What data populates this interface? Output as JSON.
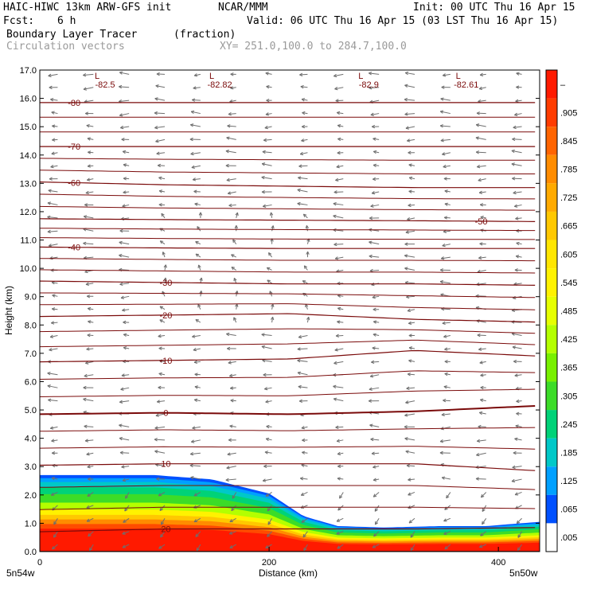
{
  "header": {
    "model": "HAIC-HIWC 13km ARW-GFS init",
    "org": "NCAR/MMM",
    "init": "Init: 00 UTC Thu 16 Apr 15",
    "fcst_label": "Fcst:",
    "fcst_value": "6 h",
    "valid": "Valid: 06 UTC Thu 16 Apr 15 (03 LST Thu 16 Apr 15)",
    "field": "Boundary Layer Tracer",
    "units": "(fraction)",
    "vectors": "Circulation vectors",
    "xy": "XY= 251.0,100.0 to 284.7,100.0"
  },
  "colorbar": {
    "labels": [
      "–",
      ".905",
      ".845",
      ".785",
      ".725",
      ".665",
      ".605",
      ".545",
      ".485",
      ".425",
      ".365",
      ".305",
      ".245",
      ".185",
      ".125",
      ".065",
      ".005"
    ],
    "colors": [
      "#ff1a00",
      "#ff3c00",
      "#ff6400",
      "#ff8c00",
      "#ffaa00",
      "#ffc800",
      "#ffe600",
      "#fff200",
      "#e6ff00",
      "#b4ff00",
      "#78f000",
      "#3cdc28",
      "#00d278",
      "#00c8c8",
      "#00a0ff",
      "#0050ff",
      "#ffffff"
    ]
  },
  "chart_data": {
    "type": "heatmap",
    "title": "Boundary Layer Tracer",
    "xlabel": "Distance (km)",
    "ylabel": "Height (km)",
    "xlim": [
      0,
      436
    ],
    "ylim": [
      0,
      17
    ],
    "x_ticks": [
      0,
      200,
      400
    ],
    "y_ticks": [
      "0.0",
      "1.0",
      "2.0",
      "3.0",
      "4.0",
      "5.0",
      "6.0",
      "7.0",
      "8.0",
      "9.0",
      "10.0",
      "11.0",
      "12.0",
      "13.0",
      "14.0",
      "15.0",
      "16.0",
      "17.0"
    ],
    "x_endpoints": {
      "left": "5n54w",
      "right": "5n50w"
    },
    "tracer_top_km": {
      "x": [
        0,
        100,
        150,
        200,
        230,
        260,
        300,
        350,
        390,
        420,
        436
      ],
      "y": [
        2.7,
        2.7,
        2.55,
        2.05,
        1.25,
        0.9,
        0.85,
        0.9,
        0.9,
        1.0,
        1.05
      ]
    },
    "temperature_contours": [
      {
        "label": "-80",
        "y": [
          15.85,
          15.85,
          15.85,
          15.85,
          15.85
        ]
      },
      {
        "label": "-70",
        "y": [
          14.3,
          14.3,
          14.3,
          14.3,
          14.3
        ]
      },
      {
        "label": "-60",
        "y": [
          13.05,
          12.95,
          12.9,
          12.85,
          12.85
        ]
      },
      {
        "label": "-50",
        "y": [
          11.75,
          11.72,
          11.7,
          11.68,
          11.65
        ]
      },
      {
        "label": "-40",
        "y": [
          10.75,
          10.72,
          10.7,
          10.7,
          10.7
        ]
      },
      {
        "label": "-30",
        "y": [
          9.55,
          9.5,
          9.45,
          9.45,
          9.4
        ]
      },
      {
        "label": "-20",
        "y": [
          8.3,
          8.35,
          8.4,
          8.2,
          8.1
        ]
      },
      {
        "label": "-10",
        "y": [
          6.7,
          6.75,
          6.8,
          7.1,
          6.9
        ]
      },
      {
        "label": "0",
        "y": [
          4.85,
          4.9,
          4.85,
          4.95,
          5.15
        ]
      },
      {
        "label": "10",
        "y": [
          3.05,
          3.1,
          3.1,
          3.1,
          2.85
        ]
      },
      {
        "label": "20",
        "y": [
          0.7,
          0.8,
          0.8,
          0.8,
          0.85
        ]
      }
    ],
    "contour_label_positions_x": {
      "-80": 30,
      "-70": 30,
      "-60": 30,
      "-50": 385,
      "-40": 30,
      "-30": 110,
      "-20": 110,
      "-10": 110,
      "0": 110,
      "10": 110,
      "20": 110
    },
    "lows": [
      {
        "label": "L",
        "value": "-82.5",
        "x": 50
      },
      {
        "label": "L",
        "value": "-82.82",
        "x": 150
      },
      {
        "label": "L",
        "value": "-82.9",
        "x": 280
      },
      {
        "label": "L",
        "value": "-82.61",
        "x": 365
      }
    ],
    "vector_field": "circulation",
    "grid": false,
    "legend": "colorbar-right"
  }
}
